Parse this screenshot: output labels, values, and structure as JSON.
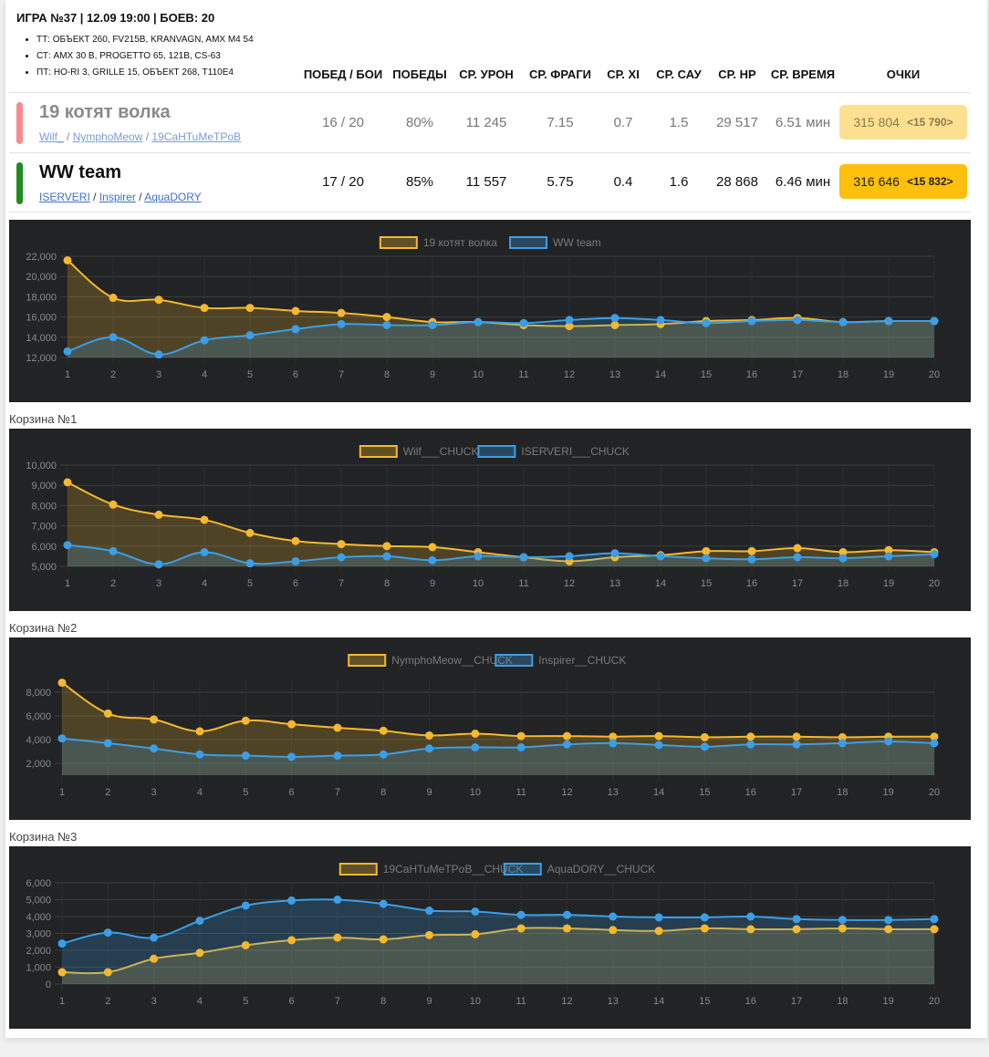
{
  "header": {
    "title": "ИГРА №37 | 12.09 19:00 | БОЕВ: 20",
    "classes": [
      "ТТ: ОБЪЕКТ 260, FV215B, KRANVAGN, AMX M4 54",
      "СТ: AMX 30 B, PROGETTO 65, 121B, CS-63",
      "ПТ: HO-RI 3, GRILLE 15, ОБЪЕКТ 268, T110E4"
    ]
  },
  "columns": [
    "ПОБЕД / БОИ",
    "ПОБЕДЫ",
    "СР. УРОН",
    "СР. ФРАГИ",
    "СР. XI",
    "СР. САУ",
    "СР. HP",
    "СР. ВРЕМЯ",
    "ОЧКИ"
  ],
  "teams": [
    {
      "name": "19 котят волка",
      "color": "#f58b8b",
      "players": [
        "Wilf_",
        "NymphoMeow",
        "19CaHTuMeTPoB"
      ],
      "wins_battles": "16 / 20",
      "winrate": "80%",
      "avg_damage": "11 245",
      "avg_frags": "7.15",
      "avg_xi": "0.7",
      "avg_sau": "1.5",
      "avg_hp": "29 517",
      "avg_time": "6.51 мин",
      "points": "315 804",
      "points_extra": "<15 790>"
    },
    {
      "name": "WW team",
      "color": "#1e8c1e",
      "players": [
        "ISERVERI",
        "Inspirer",
        "AquaDORY"
      ],
      "wins_battles": "17 / 20",
      "winrate": "85%",
      "avg_damage": "11 557",
      "avg_frags": "5.75",
      "avg_xi": "0.4",
      "avg_sau": "1.6",
      "avg_hp": "28 868",
      "avg_time": "6.46 мин",
      "points": "316 646",
      "points_extra": "<15 832>"
    }
  ],
  "chart_labels": [
    "",
    "Корзина №1",
    "Корзина №2",
    "Корзина №3"
  ],
  "colors": {
    "yellow": "#f5b82e",
    "blue": "#3b9ee6",
    "chart_bg": "#212325"
  },
  "chart_data": [
    {
      "type": "area",
      "title": "",
      "x": [
        1,
        2,
        3,
        4,
        5,
        6,
        7,
        8,
        9,
        10,
        11,
        12,
        13,
        14,
        15,
        16,
        17,
        18,
        19,
        20
      ],
      "ylim": [
        12000,
        22000
      ],
      "yticks": [
        12000,
        14000,
        16000,
        18000,
        20000,
        22000
      ],
      "legend": "top",
      "series": [
        {
          "name": "19 котят волка",
          "color": "#f5b82e",
          "values": [
            21600,
            17900,
            17700,
            16900,
            16900,
            16600,
            16400,
            16000,
            15500,
            15500,
            15200,
            15100,
            15200,
            15300,
            15600,
            15700,
            15900,
            15500,
            15600,
            15600
          ]
        },
        {
          "name": "WW team",
          "color": "#3b9ee6",
          "values": [
            12600,
            14000,
            12300,
            13700,
            14200,
            14800,
            15300,
            15200,
            15200,
            15500,
            15400,
            15700,
            15900,
            15700,
            15400,
            15600,
            15700,
            15500,
            15600,
            15600
          ]
        }
      ]
    },
    {
      "type": "area",
      "title": "",
      "x": [
        1,
        2,
        3,
        4,
        5,
        6,
        7,
        8,
        9,
        10,
        11,
        12,
        13,
        14,
        15,
        16,
        17,
        18,
        19,
        20
      ],
      "ylim": [
        5000,
        10000
      ],
      "yticks": [
        5000,
        6000,
        7000,
        8000,
        9000,
        10000
      ],
      "legend": "top",
      "series": [
        {
          "name": "Wilf___CHUCK",
          "color": "#f5b82e",
          "values": [
            9150,
            8050,
            7550,
            7300,
            6650,
            6250,
            6100,
            6000,
            5950,
            5700,
            5450,
            5250,
            5450,
            5550,
            5750,
            5750,
            5900,
            5700,
            5800,
            5700
          ]
        },
        {
          "name": "ISERVERI___CHUCK",
          "color": "#3b9ee6",
          "values": [
            6050,
            5750,
            5100,
            5700,
            5150,
            5250,
            5450,
            5500,
            5300,
            5500,
            5450,
            5500,
            5650,
            5500,
            5400,
            5350,
            5450,
            5400,
            5500,
            5600
          ]
        }
      ]
    },
    {
      "type": "area",
      "title": "",
      "x": [
        1,
        2,
        3,
        4,
        5,
        6,
        7,
        8,
        9,
        10,
        11,
        12,
        13,
        14,
        15,
        16,
        17,
        18,
        19,
        20
      ],
      "ylim": [
        1000,
        9000
      ],
      "yticks": [
        2000,
        4000,
        6000,
        8000
      ],
      "legend": "top",
      "series": [
        {
          "name": "NymphoMeow__CHUCK",
          "color": "#f5b82e",
          "values": [
            8800,
            6200,
            5700,
            4700,
            5600,
            5300,
            5000,
            4750,
            4350,
            4500,
            4300,
            4300,
            4250,
            4300,
            4200,
            4250,
            4250,
            4200,
            4250,
            4250
          ]
        },
        {
          "name": "Inspirer__CHUCK",
          "color": "#3b9ee6",
          "values": [
            4100,
            3700,
            3250,
            2750,
            2650,
            2550,
            2650,
            2750,
            3250,
            3350,
            3350,
            3600,
            3700,
            3550,
            3400,
            3600,
            3600,
            3700,
            3850,
            3700
          ]
        }
      ]
    },
    {
      "type": "area",
      "title": "",
      "x": [
        1,
        2,
        3,
        4,
        5,
        6,
        7,
        8,
        9,
        10,
        11,
        12,
        13,
        14,
        15,
        16,
        17,
        18,
        19,
        20
      ],
      "ylim": [
        0,
        6000
      ],
      "yticks": [
        0,
        1000,
        2000,
        3000,
        4000,
        5000,
        6000
      ],
      "legend": "top",
      "series": [
        {
          "name": "19CaHTuMeTPoB__CHUCK",
          "color": "#f5b82e",
          "values": [
            700,
            700,
            1500,
            1850,
            2300,
            2600,
            2750,
            2650,
            2900,
            2950,
            3300,
            3300,
            3200,
            3150,
            3300,
            3250,
            3250,
            3300,
            3250,
            3250
          ]
        },
        {
          "name": "AquaDORY__CHUCK",
          "color": "#3b9ee6",
          "values": [
            2400,
            3050,
            2750,
            3750,
            4650,
            4950,
            5000,
            4750,
            4350,
            4300,
            4100,
            4100,
            4000,
            3950,
            3950,
            4000,
            3850,
            3800,
            3800,
            3850
          ]
        }
      ]
    }
  ]
}
